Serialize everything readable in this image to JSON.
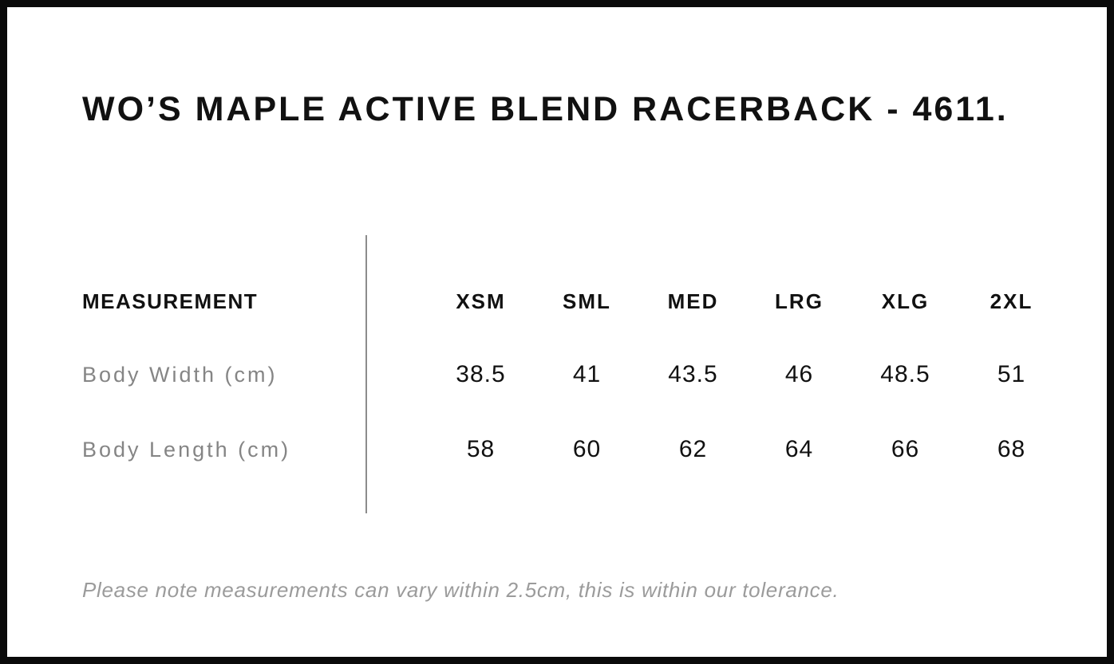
{
  "page": {
    "title": "WO’S MAPLE ACTIVE BLEND RACERBACK - 4611."
  },
  "table": {
    "measurement_header": "MEASUREMENT",
    "size_headers": [
      "XSM",
      "SML",
      "MED",
      "LRG",
      "XLG",
      "2XL"
    ],
    "rows": [
      {
        "label": "Body Width (cm)",
        "values": [
          "38.5",
          "41",
          "43.5",
          "46",
          "48.5",
          "51"
        ]
      },
      {
        "label": "Body Length (cm)",
        "values": [
          "58",
          "60",
          "62",
          "64",
          "66",
          "68"
        ]
      }
    ]
  },
  "footnote": "Please note measurements can vary within 2.5cm, this is within our tolerance.",
  "colors": {
    "border": "#0a0a0a",
    "text": "#111111",
    "label_gray": "#858585",
    "footnote_gray": "#9b9b9b",
    "divider_gray": "#8c8c8c",
    "background": "#ffffff"
  }
}
